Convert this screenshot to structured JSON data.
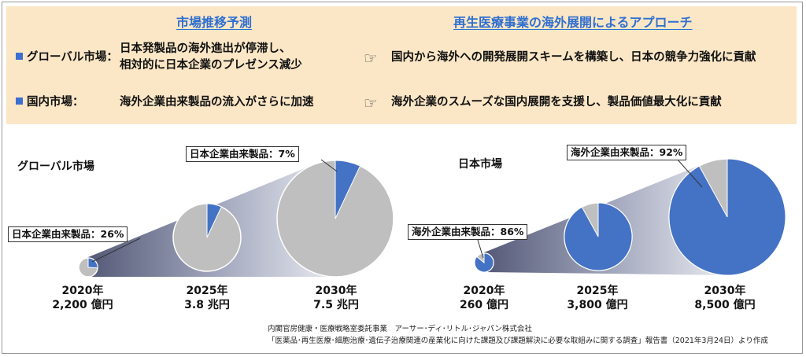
{
  "header": {
    "left_title": "市場推移予測",
    "right_title": "再生医療事業の海外展開によるアプローチ"
  },
  "rows": [
    {
      "label": "グローバル市場：",
      "forecast_lines": [
        "日本発製品の海外進出が停滞し、",
        "相対的に日本企業のプレゼンス減少"
      ],
      "approach": "国内から海外への開発展開スキームを構築し、日本の競争力強化に貢献"
    },
    {
      "label": "国内市場：",
      "forecast_lines": [
        "海外企業由来製品の流入がさらに加速"
      ],
      "approach": "海外企業のスムーズな国内展開を支援し、製品価値最大化に貢献"
    }
  ],
  "icons": {
    "pointer": "pointing-hand-icon",
    "bullet": "blue-square-icon"
  },
  "colors": {
    "highlight": "#4472c4",
    "pie_base": "#bfbfbf",
    "panel_bg": "#fbe7c6",
    "title": "#2f6fd0"
  },
  "chart_data": [
    {
      "type": "pie",
      "title": "グローバル市場",
      "highlight_series": "日本企業由来製品",
      "callout": "日本企業由来製品：7%",
      "callout_small": "日本企業由来製品：26%",
      "categories": [
        "2020年",
        "2025年",
        "2030年"
      ],
      "market_size_labels": [
        "2,200 億円",
        "3.8 兆円",
        "7.5 兆円"
      ],
      "market_size_oku_yen": [
        2200,
        38000,
        75000
      ],
      "highlight_share_pct": [
        26,
        7,
        7
      ]
    },
    {
      "type": "pie",
      "title": "日本市場",
      "highlight_series": "海外企業由来製品",
      "callout": "海外企業由来製品：92%",
      "callout_small": "海外企業由来製品：86%",
      "categories": [
        "2020年",
        "2025年",
        "2030年"
      ],
      "market_size_labels": [
        "260 億円",
        "3,800 億円",
        "8,500 億円"
      ],
      "market_size_oku_yen": [
        260,
        3800,
        8500
      ],
      "highlight_share_pct": [
        86,
        92,
        92
      ]
    }
  ],
  "source": {
    "line1": "内閣官房健康・医療戦略室委託事業　アーサー･ディ･リトル･ジャパン株式会社",
    "line2": "「医薬品･再生医療･細胞治療･遺伝子治療関連の産業化に向けた課題及び課題解決に必要な取組みに関する調査」報告書（2021年3月24日）より作成"
  }
}
